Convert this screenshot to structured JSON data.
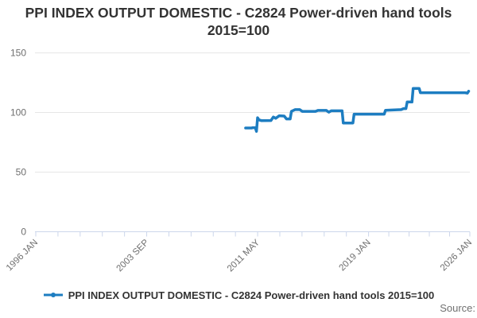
{
  "title": {
    "text": "PPI INDEX OUTPUT DOMESTIC - C2824 Power-driven hand tools 2015=100"
  },
  "legend": {
    "label": "PPI INDEX OUTPUT DOMESTIC - C2824 Power-driven hand tools 2015=100",
    "marker": "line-with-circle-marker"
  },
  "source": {
    "label": "Source:"
  },
  "colors": {
    "line": "#1d7dc1",
    "grid": "#e6e6e6",
    "axis": "#ccd6eb",
    "title_text": "#333333",
    "axis_label_text": "#6e6e6e",
    "background": "#ffffff"
  },
  "chart_data": {
    "type": "line",
    "title": "PPI INDEX OUTPUT DOMESTIC - C2824 Power-driven hand tools 2015=100",
    "xlabel": "",
    "ylabel": "",
    "legend_position": "bottom-center",
    "grid": true,
    "x_axis": {
      "type": "time-decimal-years",
      "min": 1996.0,
      "max": 2026.0,
      "labeled_ticks": [
        {
          "t": 1996.0,
          "label": "1996 JAN"
        },
        {
          "t": 2003.667,
          "label": "2003 SEP"
        },
        {
          "t": 2011.333,
          "label": "2011 MAY"
        },
        {
          "t": 2019.0,
          "label": "2019 JAN"
        },
        {
          "t": 2026.0,
          "label": "2026 JAN"
        }
      ],
      "minor_ticks_per_gap": 4,
      "label_rotation_deg": -45
    },
    "y_axis": {
      "min": 0,
      "max": 150,
      "ticks": [
        0,
        50,
        100,
        150
      ],
      "tick_labels": [
        "0",
        "50",
        "100",
        "150"
      ]
    },
    "series": [
      {
        "name": "PPI INDEX OUTPUT DOMESTIC - C2824 Power-driven hand tools 2015=100",
        "color": "#1d7dc1",
        "points": [
          [
            2010.5,
            87.0
          ],
          [
            2010.92,
            87.0
          ],
          [
            2011.0,
            87.3
          ],
          [
            2011.17,
            87.3
          ],
          [
            2011.25,
            84.2
          ],
          [
            2011.33,
            95.6
          ],
          [
            2011.42,
            93.9
          ],
          [
            2011.58,
            93.2
          ],
          [
            2012.25,
            93.3
          ],
          [
            2012.42,
            96.2
          ],
          [
            2012.58,
            95.1
          ],
          [
            2012.83,
            97.3
          ],
          [
            2013.17,
            97.0
          ],
          [
            2013.33,
            94.6
          ],
          [
            2013.58,
            94.6
          ],
          [
            2013.67,
            100.9
          ],
          [
            2013.92,
            102.4
          ],
          [
            2014.25,
            102.4
          ],
          [
            2014.42,
            100.9
          ],
          [
            2015.33,
            100.9
          ],
          [
            2015.5,
            101.7
          ],
          [
            2016.08,
            101.7
          ],
          [
            2016.25,
            100.3
          ],
          [
            2016.42,
            101.4
          ],
          [
            2017.17,
            101.4
          ],
          [
            2017.25,
            91.2
          ],
          [
            2017.92,
            91.2
          ],
          [
            2018.0,
            98.6
          ],
          [
            2020.08,
            98.6
          ],
          [
            2020.17,
            101.9
          ],
          [
            2021.25,
            102.4
          ],
          [
            2021.42,
            103.3
          ],
          [
            2021.58,
            103.3
          ],
          [
            2021.67,
            108.8
          ],
          [
            2022.0,
            108.8
          ],
          [
            2022.08,
            120.2
          ],
          [
            2022.5,
            120.2
          ],
          [
            2022.58,
            116.6
          ],
          [
            2025.67,
            116.6
          ],
          [
            2025.83,
            116.2
          ],
          [
            2025.92,
            117.9
          ]
        ]
      }
    ]
  }
}
